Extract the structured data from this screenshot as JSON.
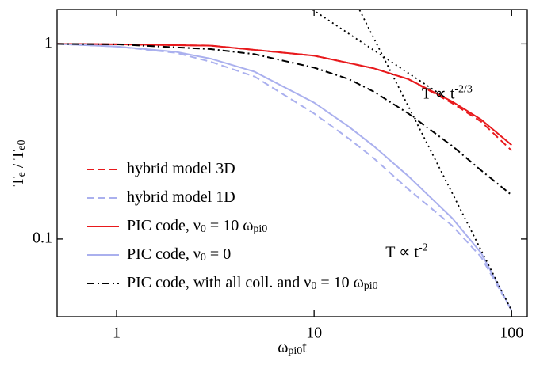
{
  "chart_data": {
    "type": "line",
    "xlabel": {
      "parts": [
        "ω",
        "pi0",
        "t"
      ],
      "script": "sub"
    },
    "ylabel": {
      "parts": [
        "T",
        "e",
        " / T",
        "e0"
      ],
      "script": "sub"
    },
    "xscale": "log",
    "yscale": "log",
    "xlim": [
      0.5,
      120
    ],
    "ylim": [
      0.04,
      1.5
    ],
    "xticks": [
      1,
      10,
      100
    ],
    "yticks": [
      0.1,
      1
    ],
    "legend": "lower left",
    "series": [
      {
        "name": {
          "parts": [
            "hybrid model 3D"
          ],
          "script": "sub"
        },
        "color": "#e8191c",
        "dash": "dashed",
        "x": [
          0.5,
          1,
          3,
          10,
          20,
          30,
          50,
          70,
          100
        ],
        "values": [
          1.0,
          0.995,
          0.98,
          0.87,
          0.75,
          0.66,
          0.497,
          0.4,
          0.284
        ]
      },
      {
        "name": {
          "parts": [
            "hybrid model 1D"
          ],
          "script": "sub"
        },
        "color": "#aab0ee",
        "dash": "dashed",
        "x": [
          0.5,
          1,
          2,
          3,
          5,
          10,
          15,
          20,
          30,
          50,
          70,
          100
        ],
        "values": [
          1.0,
          0.97,
          0.9,
          0.81,
          0.68,
          0.44,
          0.327,
          0.26,
          0.18,
          0.117,
          0.081,
          0.043
        ]
      },
      {
        "name": {
          "parts": [
            "PIC code, ν",
            "0",
            " = 10 ω",
            "pi0"
          ],
          "script": "sub"
        },
        "color": "#e8191c",
        "dash": "solid",
        "x": [
          0.5,
          1,
          3,
          10,
          20,
          30,
          50,
          70,
          100
        ],
        "values": [
          1.0,
          0.995,
          0.98,
          0.87,
          0.75,
          0.66,
          0.506,
          0.41,
          0.303
        ]
      },
      {
        "name": {
          "parts": [
            "PIC code, ν",
            "0",
            " = 0"
          ],
          "script": "sub"
        },
        "color": "#aab0ee",
        "dash": "solid",
        "x": [
          0.5,
          1,
          2,
          3,
          5,
          10,
          15,
          20,
          30,
          50,
          70,
          100
        ],
        "values": [
          1.0,
          0.97,
          0.91,
          0.84,
          0.72,
          0.5,
          0.376,
          0.3,
          0.21,
          0.128,
          0.085,
          0.043
        ]
      },
      {
        "name": {
          "parts": [
            "PIC code, with all coll. and ν",
            "0",
            " = 10 ω",
            "pi0"
          ],
          "script": "sub"
        },
        "color": "#000000",
        "dash": "dashdot",
        "x": [
          0.5,
          1,
          3,
          5,
          10,
          15,
          20,
          30,
          50,
          70,
          100
        ],
        "values": [
          1.0,
          0.995,
          0.94,
          0.886,
          0.756,
          0.66,
          0.57,
          0.44,
          0.3,
          0.225,
          0.168
        ]
      },
      {
        "color": "#000000",
        "dash": "dotted",
        "x": [
          9.8,
          45
        ],
        "values": [
          1.5,
          0.54
        ]
      },
      {
        "color": "#000000",
        "dash": "dotted",
        "x": [
          17,
          100
        ],
        "values": [
          1.49,
          0.043
        ]
      }
    ],
    "annotations": [
      {
        "parts": [
          "T ∝ t",
          "-2/3"
        ],
        "script": "sup",
        "x": 35,
        "y": 0.55
      },
      {
        "parts": [
          "T ∝ t",
          "-2"
        ],
        "script": "sup",
        "x": 23,
        "y": 0.085
      }
    ]
  }
}
